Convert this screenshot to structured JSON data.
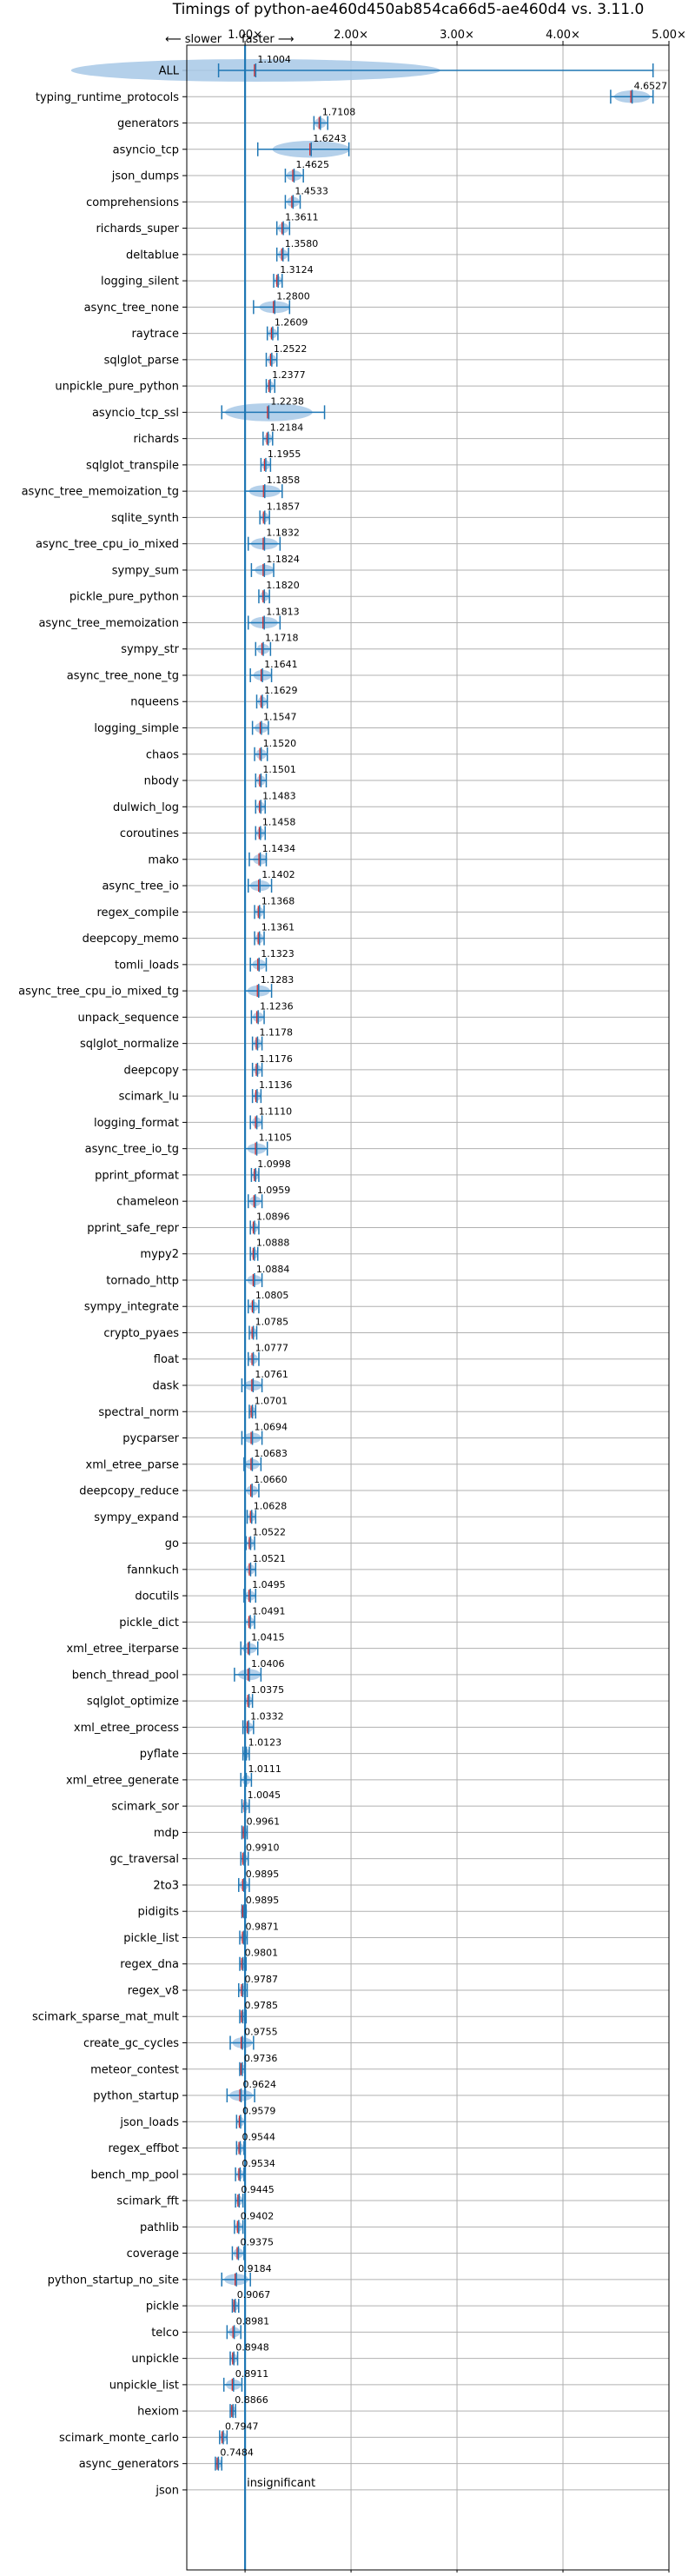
{
  "chart_data": {
    "type": "violin",
    "title": "Timings of python-ae460d450ab854ca66d5-ae460d4 vs. 3.11.0",
    "direction_slower_label": "⟵ slower",
    "direction_faster_label": "faster ⟶",
    "xlim": [
      0.45,
      5.0
    ],
    "xticks": [
      1,
      2,
      3,
      4,
      5
    ],
    "xtick_labels": [
      "1.00×",
      "2.00×",
      "3.00×",
      "4.00×",
      "5.00×"
    ],
    "reference_line": 1.0,
    "grid": true,
    "colors": {
      "violin": "#a7c8e6",
      "marker": "#1f77b4",
      "median": "#d62728",
      "grid": "#b0b0b0"
    },
    "benchmarks": [
      {
        "name": "ALL",
        "value": 1.1004,
        "label": "1.1004",
        "lo": 0.75,
        "hi": 4.85
      },
      {
        "name": "typing_runtime_protocols",
        "value": 4.6527,
        "label": "4.6527",
        "lo": 4.45,
        "hi": 4.85
      },
      {
        "name": "generators",
        "value": 1.7108,
        "label": "1.7108",
        "lo": 1.65,
        "hi": 1.78
      },
      {
        "name": "asyncio_tcp",
        "value": 1.6243,
        "label": "1.6243",
        "lo": 1.12,
        "hi": 1.98
      },
      {
        "name": "json_dumps",
        "value": 1.4625,
        "label": "1.4625",
        "lo": 1.38,
        "hi": 1.55
      },
      {
        "name": "comprehensions",
        "value": 1.4533,
        "label": "1.4533",
        "lo": 1.38,
        "hi": 1.52
      },
      {
        "name": "richards_super",
        "value": 1.3611,
        "label": "1.3611",
        "lo": 1.3,
        "hi": 1.42
      },
      {
        "name": "deltablue",
        "value": 1.358,
        "label": "1.3580",
        "lo": 1.3,
        "hi": 1.41
      },
      {
        "name": "logging_silent",
        "value": 1.3124,
        "label": "1.3124",
        "lo": 1.27,
        "hi": 1.35
      },
      {
        "name": "async_tree_none",
        "value": 1.28,
        "label": "1.2800",
        "lo": 1.08,
        "hi": 1.42
      },
      {
        "name": "raytrace",
        "value": 1.2609,
        "label": "1.2609",
        "lo": 1.21,
        "hi": 1.31
      },
      {
        "name": "sqlglot_parse",
        "value": 1.2522,
        "label": "1.2522",
        "lo": 1.2,
        "hi": 1.3
      },
      {
        "name": "unpickle_pure_python",
        "value": 1.2377,
        "label": "1.2377",
        "lo": 1.2,
        "hi": 1.28
      },
      {
        "name": "asyncio_tcp_ssl",
        "value": 1.2238,
        "label": "1.2238",
        "lo": 0.78,
        "hi": 1.75
      },
      {
        "name": "richards",
        "value": 1.2184,
        "label": "1.2184",
        "lo": 1.17,
        "hi": 1.26
      },
      {
        "name": "sqlglot_transpile",
        "value": 1.1955,
        "label": "1.1955",
        "lo": 1.15,
        "hi": 1.24
      },
      {
        "name": "async_tree_memoization_tg",
        "value": 1.1858,
        "label": "1.1858",
        "lo": 1.0,
        "hi": 1.35
      },
      {
        "name": "sqlite_synth",
        "value": 1.1857,
        "label": "1.1857",
        "lo": 1.14,
        "hi": 1.23
      },
      {
        "name": "async_tree_cpu_io_mixed",
        "value": 1.1832,
        "label": "1.1832",
        "lo": 1.03,
        "hi": 1.33
      },
      {
        "name": "sympy_sum",
        "value": 1.1824,
        "label": "1.1824",
        "lo": 1.06,
        "hi": 1.27
      },
      {
        "name": "pickle_pure_python",
        "value": 1.182,
        "label": "1.1820",
        "lo": 1.13,
        "hi": 1.23
      },
      {
        "name": "async_tree_memoization",
        "value": 1.1813,
        "label": "1.1813",
        "lo": 1.03,
        "hi": 1.33
      },
      {
        "name": "sympy_str",
        "value": 1.1718,
        "label": "1.1718",
        "lo": 1.1,
        "hi": 1.24
      },
      {
        "name": "async_tree_none_tg",
        "value": 1.1641,
        "label": "1.1641",
        "lo": 1.05,
        "hi": 1.25
      },
      {
        "name": "nqueens",
        "value": 1.1629,
        "label": "1.1629",
        "lo": 1.11,
        "hi": 1.21
      },
      {
        "name": "logging_simple",
        "value": 1.1547,
        "label": "1.1547",
        "lo": 1.07,
        "hi": 1.22
      },
      {
        "name": "chaos",
        "value": 1.152,
        "label": "1.1520",
        "lo": 1.09,
        "hi": 1.21
      },
      {
        "name": "nbody",
        "value": 1.1501,
        "label": "1.1501",
        "lo": 1.1,
        "hi": 1.2
      },
      {
        "name": "dulwich_log",
        "value": 1.1483,
        "label": "1.1483",
        "lo": 1.1,
        "hi": 1.19
      },
      {
        "name": "coroutines",
        "value": 1.1458,
        "label": "1.1458",
        "lo": 1.1,
        "hi": 1.19
      },
      {
        "name": "mako",
        "value": 1.1434,
        "label": "1.1434",
        "lo": 1.04,
        "hi": 1.2
      },
      {
        "name": "async_tree_io",
        "value": 1.1402,
        "label": "1.1402",
        "lo": 1.03,
        "hi": 1.25
      },
      {
        "name": "regex_compile",
        "value": 1.1368,
        "label": "1.1368",
        "lo": 1.09,
        "hi": 1.18
      },
      {
        "name": "deepcopy_memo",
        "value": 1.1361,
        "label": "1.1361",
        "lo": 1.09,
        "hi": 1.18
      },
      {
        "name": "tomli_loads",
        "value": 1.1323,
        "label": "1.1323",
        "lo": 1.05,
        "hi": 1.2
      },
      {
        "name": "async_tree_cpu_io_mixed_tg",
        "value": 1.1283,
        "label": "1.1283",
        "lo": 1.0,
        "hi": 1.25
      },
      {
        "name": "unpack_sequence",
        "value": 1.1236,
        "label": "1.1236",
        "lo": 1.06,
        "hi": 1.18
      },
      {
        "name": "sqlglot_normalize",
        "value": 1.1178,
        "label": "1.1178",
        "lo": 1.07,
        "hi": 1.16
      },
      {
        "name": "deepcopy",
        "value": 1.1176,
        "label": "1.1176",
        "lo": 1.07,
        "hi": 1.16
      },
      {
        "name": "scimark_lu",
        "value": 1.1136,
        "label": "1.1136",
        "lo": 1.07,
        "hi": 1.15
      },
      {
        "name": "logging_format",
        "value": 1.111,
        "label": "1.1110",
        "lo": 1.05,
        "hi": 1.16
      },
      {
        "name": "async_tree_io_tg",
        "value": 1.1105,
        "label": "1.1105",
        "lo": 1.0,
        "hi": 1.21
      },
      {
        "name": "pprint_pformat",
        "value": 1.0998,
        "label": "1.0998",
        "lo": 1.06,
        "hi": 1.13
      },
      {
        "name": "chameleon",
        "value": 1.0959,
        "label": "1.0959",
        "lo": 1.03,
        "hi": 1.16
      },
      {
        "name": "pprint_safe_repr",
        "value": 1.0896,
        "label": "1.0896",
        "lo": 1.05,
        "hi": 1.13
      },
      {
        "name": "mypy2",
        "value": 1.0888,
        "label": "1.0888",
        "lo": 1.05,
        "hi": 1.12
      },
      {
        "name": "tornado_http",
        "value": 1.0884,
        "label": "1.0884",
        "lo": 1.0,
        "hi": 1.16
      },
      {
        "name": "sympy_integrate",
        "value": 1.0805,
        "label": "1.0805",
        "lo": 1.03,
        "hi": 1.13
      },
      {
        "name": "crypto_pyaes",
        "value": 1.0785,
        "label": "1.0785",
        "lo": 1.04,
        "hi": 1.11
      },
      {
        "name": "float",
        "value": 1.0777,
        "label": "1.0777",
        "lo": 1.03,
        "hi": 1.13
      },
      {
        "name": "dask",
        "value": 1.0761,
        "label": "1.0761",
        "lo": 0.97,
        "hi": 1.16
      },
      {
        "name": "spectral_norm",
        "value": 1.0701,
        "label": "1.0701",
        "lo": 1.04,
        "hi": 1.1
      },
      {
        "name": "pycparser",
        "value": 1.0694,
        "label": "1.0694",
        "lo": 0.97,
        "hi": 1.16
      },
      {
        "name": "xml_etree_parse",
        "value": 1.0683,
        "label": "1.0683",
        "lo": 0.99,
        "hi": 1.15
      },
      {
        "name": "deepcopy_reduce",
        "value": 1.066,
        "label": "1.0660",
        "lo": 1.0,
        "hi": 1.13
      },
      {
        "name": "sympy_expand",
        "value": 1.0628,
        "label": "1.0628",
        "lo": 1.02,
        "hi": 1.1
      },
      {
        "name": "go",
        "value": 1.0522,
        "label": "1.0522",
        "lo": 1.01,
        "hi": 1.09
      },
      {
        "name": "fannkuch",
        "value": 1.0521,
        "label": "1.0521",
        "lo": 1.0,
        "hi": 1.1
      },
      {
        "name": "docutils",
        "value": 1.0495,
        "label": "1.0495",
        "lo": 0.99,
        "hi": 1.1
      },
      {
        "name": "pickle_dict",
        "value": 1.0491,
        "label": "1.0491",
        "lo": 1.0,
        "hi": 1.09
      },
      {
        "name": "xml_etree_iterparse",
        "value": 1.0415,
        "label": "1.0415",
        "lo": 0.96,
        "hi": 1.12
      },
      {
        "name": "bench_thread_pool",
        "value": 1.0406,
        "label": "1.0406",
        "lo": 0.9,
        "hi": 1.15
      },
      {
        "name": "sqlglot_optimize",
        "value": 1.0375,
        "label": "1.0375",
        "lo": 1.0,
        "hi": 1.07
      },
      {
        "name": "xml_etree_process",
        "value": 1.0332,
        "label": "1.0332",
        "lo": 0.98,
        "hi": 1.08
      },
      {
        "name": "pyflate",
        "value": 1.0123,
        "label": "1.0123",
        "lo": 0.98,
        "hi": 1.04
      },
      {
        "name": "xml_etree_generate",
        "value": 1.0111,
        "label": "1.0111",
        "lo": 0.96,
        "hi": 1.06
      },
      {
        "name": "scimark_sor",
        "value": 1.0045,
        "label": "1.0045",
        "lo": 0.97,
        "hi": 1.04
      },
      {
        "name": "mdp",
        "value": 0.9961,
        "label": "0.9961",
        "lo": 0.97,
        "hi": 1.02
      },
      {
        "name": "gc_traversal",
        "value": 0.991,
        "label": "0.9910",
        "lo": 0.96,
        "hi": 1.03
      },
      {
        "name": "2to3",
        "value": 0.9895,
        "label": "0.9895",
        "lo": 0.94,
        "hi": 1.04
      },
      {
        "name": "pidigits",
        "value": 0.9895,
        "label": "0.9895",
        "lo": 0.97,
        "hi": 1.01
      },
      {
        "name": "pickle_list",
        "value": 0.9871,
        "label": "0.9871",
        "lo": 0.95,
        "hi": 1.02
      },
      {
        "name": "regex_dna",
        "value": 0.9801,
        "label": "0.9801",
        "lo": 0.95,
        "hi": 1.01
      },
      {
        "name": "regex_v8",
        "value": 0.9787,
        "label": "0.9787",
        "lo": 0.94,
        "hi": 1.02
      },
      {
        "name": "scimark_sparse_mat_mult",
        "value": 0.9785,
        "label": "0.9785",
        "lo": 0.95,
        "hi": 1.01
      },
      {
        "name": "create_gc_cycles",
        "value": 0.9755,
        "label": "0.9755",
        "lo": 0.86,
        "hi": 1.08
      },
      {
        "name": "meteor_contest",
        "value": 0.9736,
        "label": "0.9736",
        "lo": 0.95,
        "hi": 1.0
      },
      {
        "name": "python_startup",
        "value": 0.9624,
        "label": "0.9624",
        "lo": 0.83,
        "hi": 1.09
      },
      {
        "name": "json_loads",
        "value": 0.9579,
        "label": "0.9579",
        "lo": 0.92,
        "hi": 1.0
      },
      {
        "name": "regex_effbot",
        "value": 0.9544,
        "label": "0.9544",
        "lo": 0.92,
        "hi": 0.99
      },
      {
        "name": "bench_mp_pool",
        "value": 0.9534,
        "label": "0.9534",
        "lo": 0.91,
        "hi": 0.99
      },
      {
        "name": "scimark_fft",
        "value": 0.9445,
        "label": "0.9445",
        "lo": 0.91,
        "hi": 0.98
      },
      {
        "name": "pathlib",
        "value": 0.9402,
        "label": "0.9402",
        "lo": 0.9,
        "hi": 0.98
      },
      {
        "name": "coverage",
        "value": 0.9375,
        "label": "0.9375",
        "lo": 0.88,
        "hi": 0.99
      },
      {
        "name": "python_startup_no_site",
        "value": 0.9184,
        "label": "0.9184",
        "lo": 0.78,
        "hi": 1.05
      },
      {
        "name": "pickle",
        "value": 0.9067,
        "label": "0.9067",
        "lo": 0.88,
        "hi": 0.94
      },
      {
        "name": "telco",
        "value": 0.8981,
        "label": "0.8981",
        "lo": 0.83,
        "hi": 0.96
      },
      {
        "name": "unpickle",
        "value": 0.8948,
        "label": "0.8948",
        "lo": 0.86,
        "hi": 0.93
      },
      {
        "name": "unpickle_list",
        "value": 0.8911,
        "label": "0.8911",
        "lo": 0.8,
        "hi": 0.97
      },
      {
        "name": "hexiom",
        "value": 0.8866,
        "label": "0.8866",
        "lo": 0.86,
        "hi": 0.91
      },
      {
        "name": "scimark_monte_carlo",
        "value": 0.7947,
        "label": "0.7947",
        "lo": 0.76,
        "hi": 0.83
      },
      {
        "name": "async_generators",
        "value": 0.7484,
        "label": "0.7484",
        "lo": 0.72,
        "hi": 0.78
      },
      {
        "name": "json",
        "value": null,
        "label": "insignificant",
        "lo": null,
        "hi": null
      }
    ]
  }
}
